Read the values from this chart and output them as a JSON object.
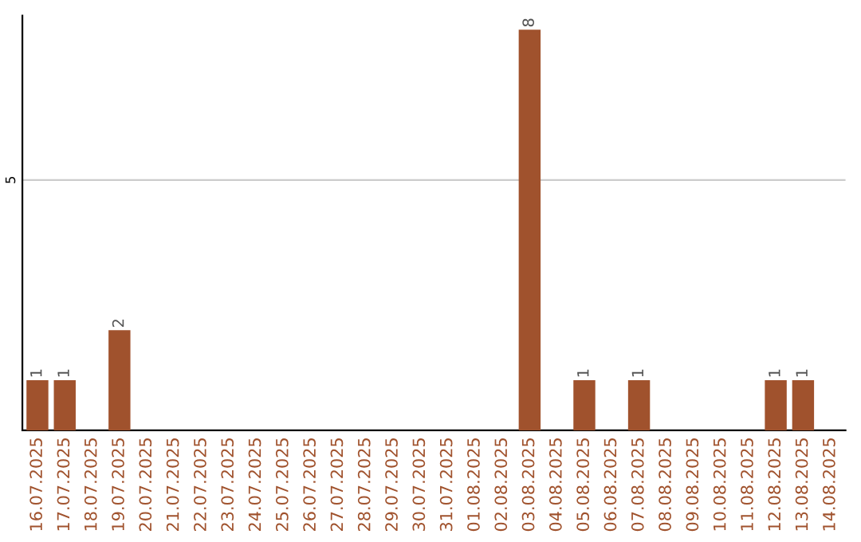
{
  "chart_data": {
    "type": "bar",
    "categories": [
      "16.07.2025",
      "17.07.2025",
      "18.07.2025",
      "19.07.2025",
      "20.07.2025",
      "21.07.2025",
      "22.07.2025",
      "23.07.2025",
      "24.07.2025",
      "25.07.2025",
      "26.07.2025",
      "27.07.2025",
      "28.07.2025",
      "29.07.2025",
      "30.07.2025",
      "31.07.2025",
      "01.08.2025",
      "02.08.2025",
      "03.08.2025",
      "04.08.2025",
      "05.08.2025",
      "06.08.2025",
      "07.08.2025",
      "08.08.2025",
      "09.08.2025",
      "10.08.2025",
      "11.08.2025",
      "12.08.2025",
      "13.08.2025",
      "14.08.2025"
    ],
    "values": [
      1,
      1,
      0,
      2,
      0,
      0,
      0,
      0,
      0,
      0,
      0,
      0,
      0,
      0,
      0,
      0,
      0,
      0,
      8,
      0,
      1,
      0,
      1,
      0,
      0,
      0,
      0,
      1,
      1,
      0
    ],
    "value_labels": [
      "1",
      "1",
      null,
      "2",
      null,
      null,
      null,
      null,
      null,
      null,
      null,
      null,
      null,
      null,
      null,
      null,
      null,
      null,
      "8",
      null,
      "1",
      null,
      "1",
      null,
      null,
      null,
      null,
      "1",
      "1",
      null
    ],
    "color": "#a0522d",
    "ylim": [
      0,
      8.28
    ],
    "yticks": [
      5
    ],
    "grid": "y"
  }
}
